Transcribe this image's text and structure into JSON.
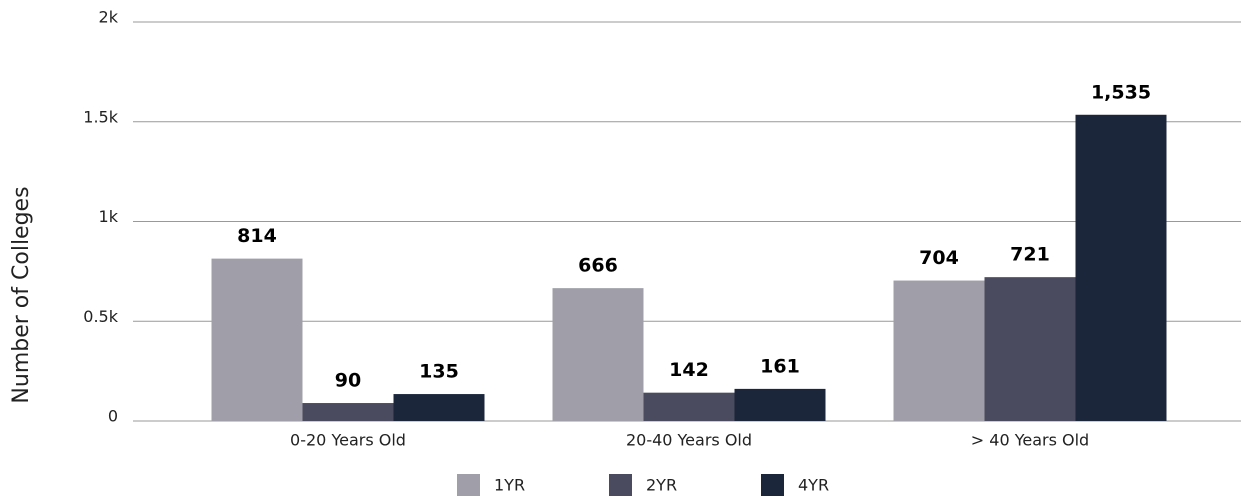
{
  "chart_data": {
    "type": "bar",
    "y_label": "Number of Colleges",
    "categories": [
      "0-20 Years Old",
      "20-40 Years Old",
      "> 40 Years Old"
    ],
    "series": [
      {
        "name": "1YR",
        "color": "#a09fa9",
        "values": [
          814,
          666,
          704
        ]
      },
      {
        "name": "2YR",
        "color": "#4a4b5e",
        "values": [
          90,
          142,
          721
        ]
      },
      {
        "name": "4YR",
        "color": "#1b263b",
        "values": [
          135,
          161,
          1535
        ],
        "value_labels": [
          "135",
          "161",
          "1,535"
        ]
      }
    ],
    "ylim": [
      0,
      2000
    ],
    "yticks": [
      0,
      {
        "value": 500,
        "label": "0.5k"
      },
      {
        "value": 1000,
        "label": "1k"
      },
      {
        "value": 1500,
        "label": "1.5k"
      },
      {
        "value": 2000,
        "label": "2k"
      }
    ],
    "grid": true,
    "legend": "bottom"
  }
}
